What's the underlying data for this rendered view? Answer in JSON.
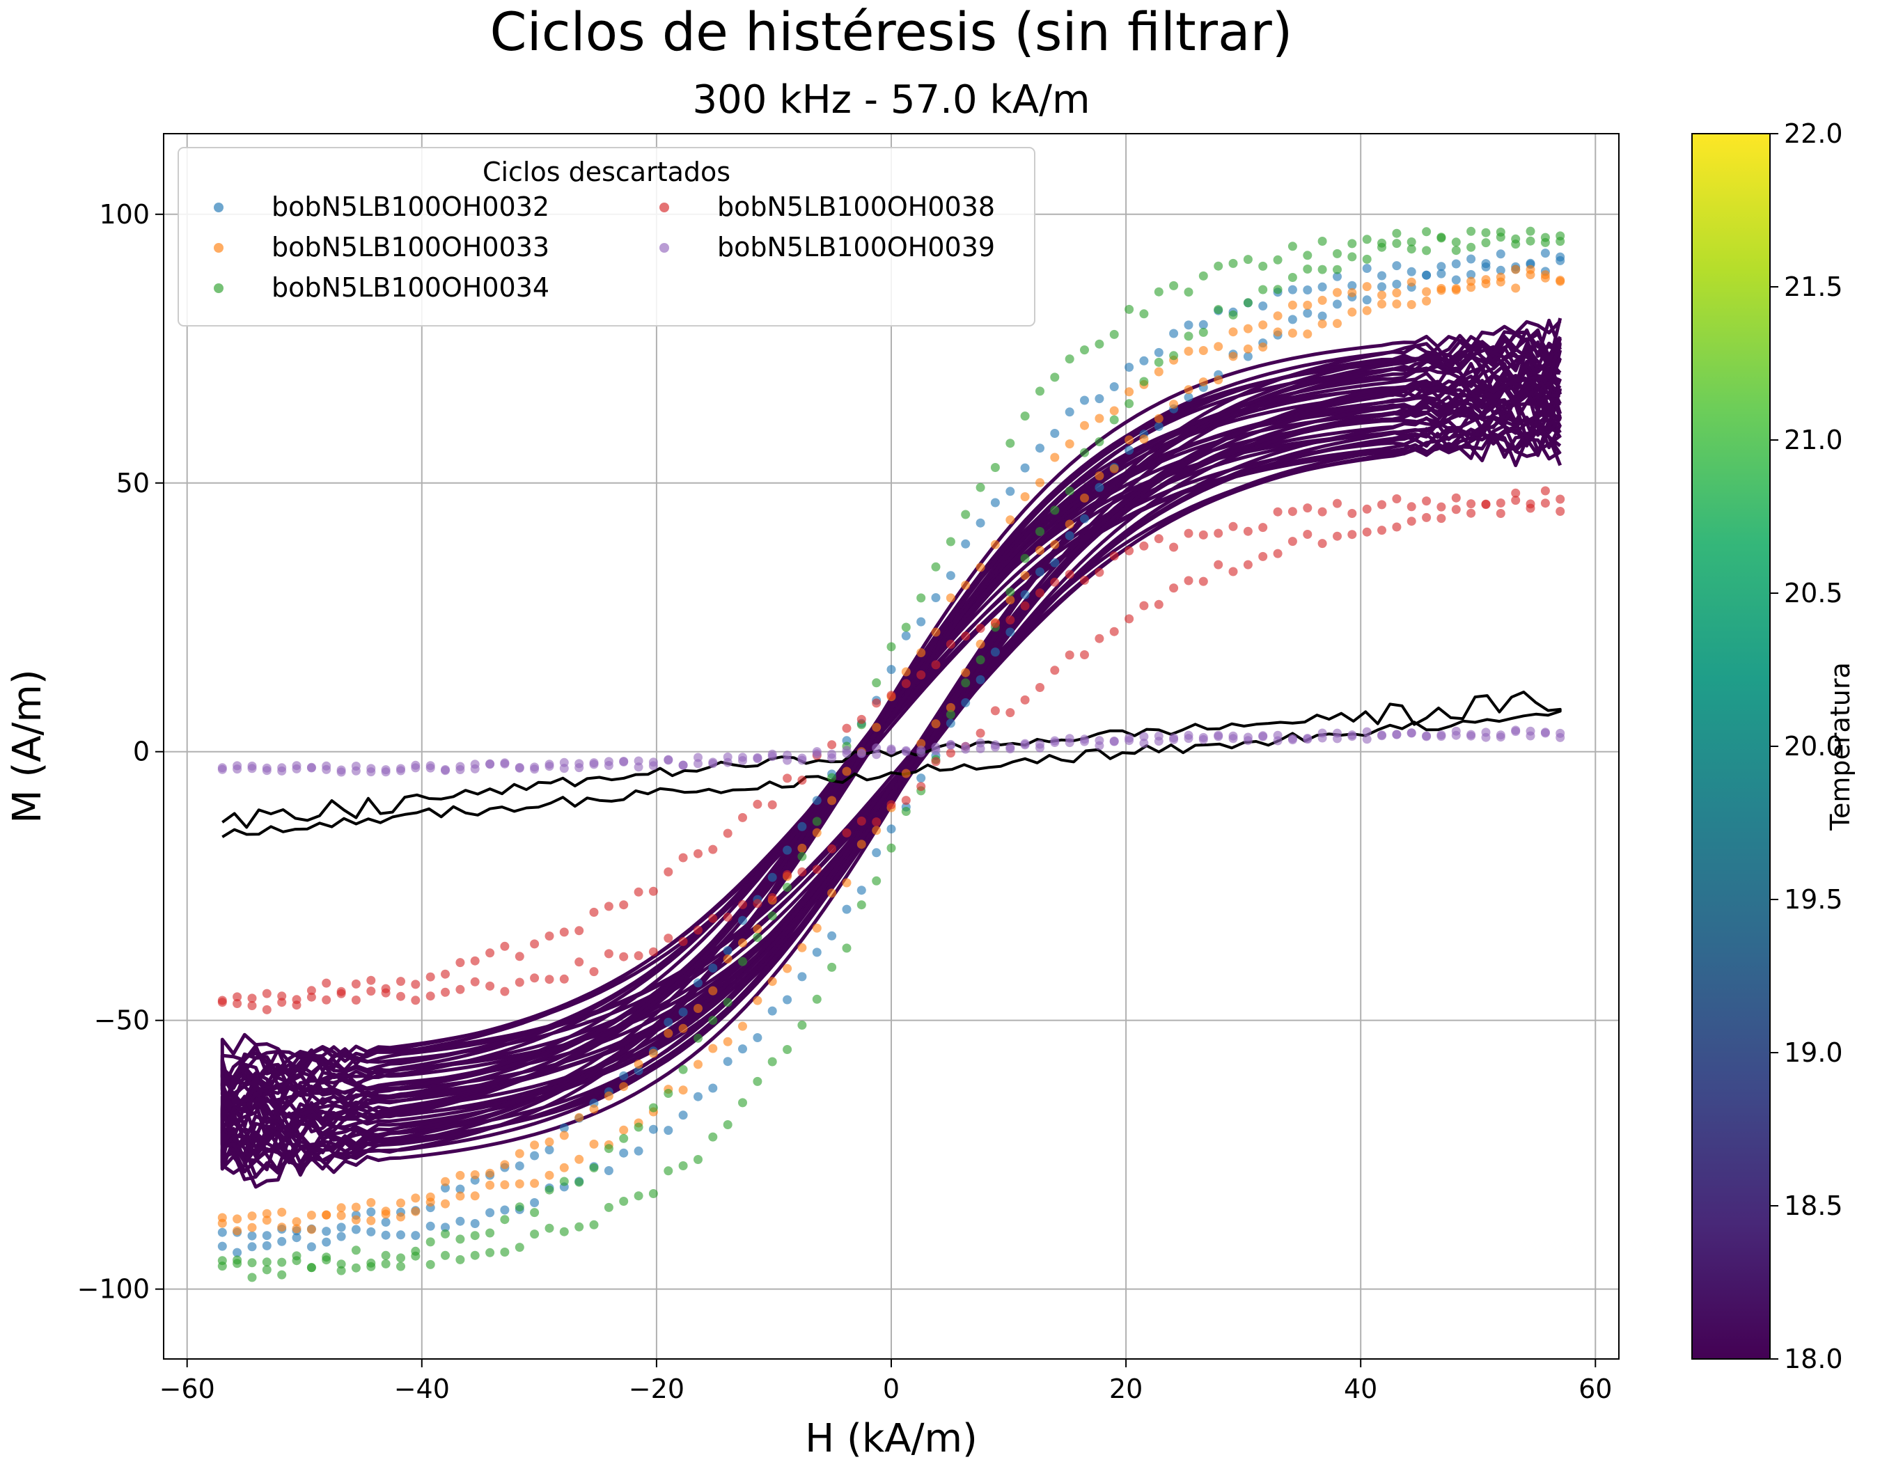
{
  "chart_data": {
    "type": "scatter",
    "title": "Ciclos de histéresis (sin filtrar)",
    "subtitle": "300 kHz - 57.0 kA/m",
    "xlabel": "H (kA/m)",
    "ylabel": "M (A/m)",
    "xlim": [
      -62,
      62
    ],
    "ylim": [
      -113,
      115
    ],
    "x_ticks": [
      -60,
      -40,
      -20,
      0,
      20,
      40,
      60
    ],
    "y_ticks": [
      -100,
      -50,
      0,
      50,
      100
    ],
    "x_tick_labels": [
      "−60",
      "−40",
      "−20",
      "0",
      "20",
      "40",
      "60"
    ],
    "y_tick_labels": [
      "−100",
      "−50",
      "0",
      "50",
      "100"
    ],
    "grid": true,
    "legend": {
      "title": "Ciclos descartados",
      "placement": "top-left",
      "columns": 2,
      "entries": [
        {
          "name": "bobN5LB100OH0032",
          "color": "#1f77b4"
        },
        {
          "name": "bobN5LB100OH0033",
          "color": "#ff7f0e"
        },
        {
          "name": "bobN5LB100OH0034",
          "color": "#2ca02c"
        },
        {
          "name": "bobN5LB100OH0038",
          "color": "#d62728"
        },
        {
          "name": "bobN5LB100OH0039",
          "color": "#9467bd"
        }
      ]
    },
    "discarded_loops": [
      {
        "name": "bobN5LB100OH0032",
        "color": "#1f77b4",
        "Hmax": 57,
        "Ms": 93,
        "coercive_field": 4.0,
        "field_scale": 24
      },
      {
        "name": "bobN5LB100OH0033",
        "color": "#ff7f0e",
        "Hmax": 57,
        "Ms": 90,
        "coercive_field": 2.5,
        "field_scale": 24
      },
      {
        "name": "bobN5LB100OH0034",
        "color": "#2ca02c",
        "Hmax": 57,
        "Ms": 97,
        "coercive_field": 3.8,
        "field_scale": 20
      },
      {
        "name": "bobN5LB100OH0038",
        "color": "#d62728",
        "Hmax": 57,
        "Ms": 48,
        "coercive_field": 5.5,
        "field_scale": 26
      },
      {
        "name": "bobN5LB100OH0039",
        "color": "#9467bd",
        "Hmax": 57,
        "Ms": 3.5,
        "coercive_field": 1.0,
        "field_scale": 30
      }
    ],
    "accepted_loops": {
      "color": "#440154",
      "count": 22,
      "Hmax": 57,
      "Ms_range": [
        58,
        78
      ],
      "coercive_field_range": [
        1.8,
        3.2
      ],
      "field_scale": 22
    },
    "reference_loop": {
      "color": "#000000",
      "Hmax": 57,
      "M_at_Hmax": 8,
      "M_at_minus_Hmax": -14
    },
    "colorbar": {
      "label": "Temperatura",
      "min": 18.0,
      "max": 22.0,
      "ticks": [
        18.0,
        18.5,
        19.0,
        19.5,
        20.0,
        20.5,
        21.0,
        21.5,
        22.0
      ],
      "tick_labels": [
        "18.0",
        "18.5",
        "19.0",
        "19.5",
        "20.0",
        "20.5",
        "21.0",
        "21.5",
        "22.0"
      ],
      "colormap": "viridis",
      "colormap_stops": [
        "#440154",
        "#482878",
        "#3e4a89",
        "#31688e",
        "#26828e",
        "#1f9e89",
        "#35b779",
        "#6ece58",
        "#b5de2b",
        "#fde725"
      ]
    }
  }
}
